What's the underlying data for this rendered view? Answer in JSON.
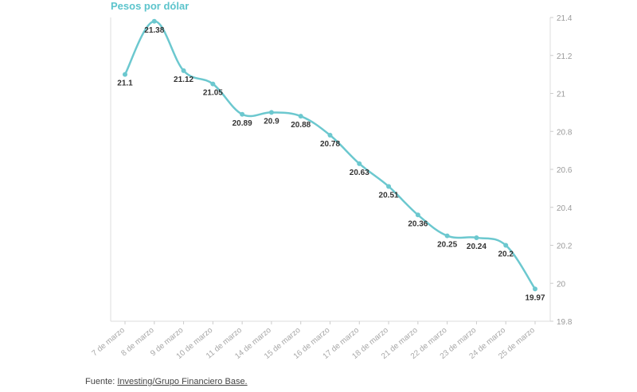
{
  "chart_data": {
    "type": "line",
    "title": "Pesos por dólar",
    "xlabel": "",
    "ylabel": "",
    "categories": [
      "7 de marzo",
      "8 de marzo",
      "9 de marzo",
      "10 de marzo",
      "11 de marzo",
      "14 de marzo",
      "15 de marzo",
      "16 de marzo",
      "17 de marzo",
      "18 de marzo",
      "21 de marzo",
      "22 de marzo",
      "23 de marzo",
      "24 de marzo",
      "25 de marzo"
    ],
    "values": [
      21.1,
      21.38,
      21.12,
      21.05,
      20.89,
      20.9,
      20.88,
      20.78,
      20.63,
      20.51,
      20.36,
      20.25,
      20.24,
      20.2,
      19.97
    ],
    "value_labels": [
      "21.1",
      "21.38",
      "21.12",
      "21.05",
      "20.89",
      "20.9",
      "20.88",
      "20.78",
      "20.63",
      "20.51",
      "20.36",
      "20.25",
      "20.24",
      "20.2",
      "19.97"
    ],
    "ylim": [
      19.8,
      21.4
    ],
    "yticks": [
      "19.8",
      "20",
      "20.2",
      "20.4",
      "20.6",
      "20.8",
      "21",
      "21.2",
      "21.4"
    ],
    "axis_position": "right",
    "grid": false,
    "line_color": "#6cc8cf",
    "point_color": "#6cc8cf"
  },
  "source": {
    "prefix": "Fuente: ",
    "link_text": "Investing/Grupo Financiero Base."
  }
}
